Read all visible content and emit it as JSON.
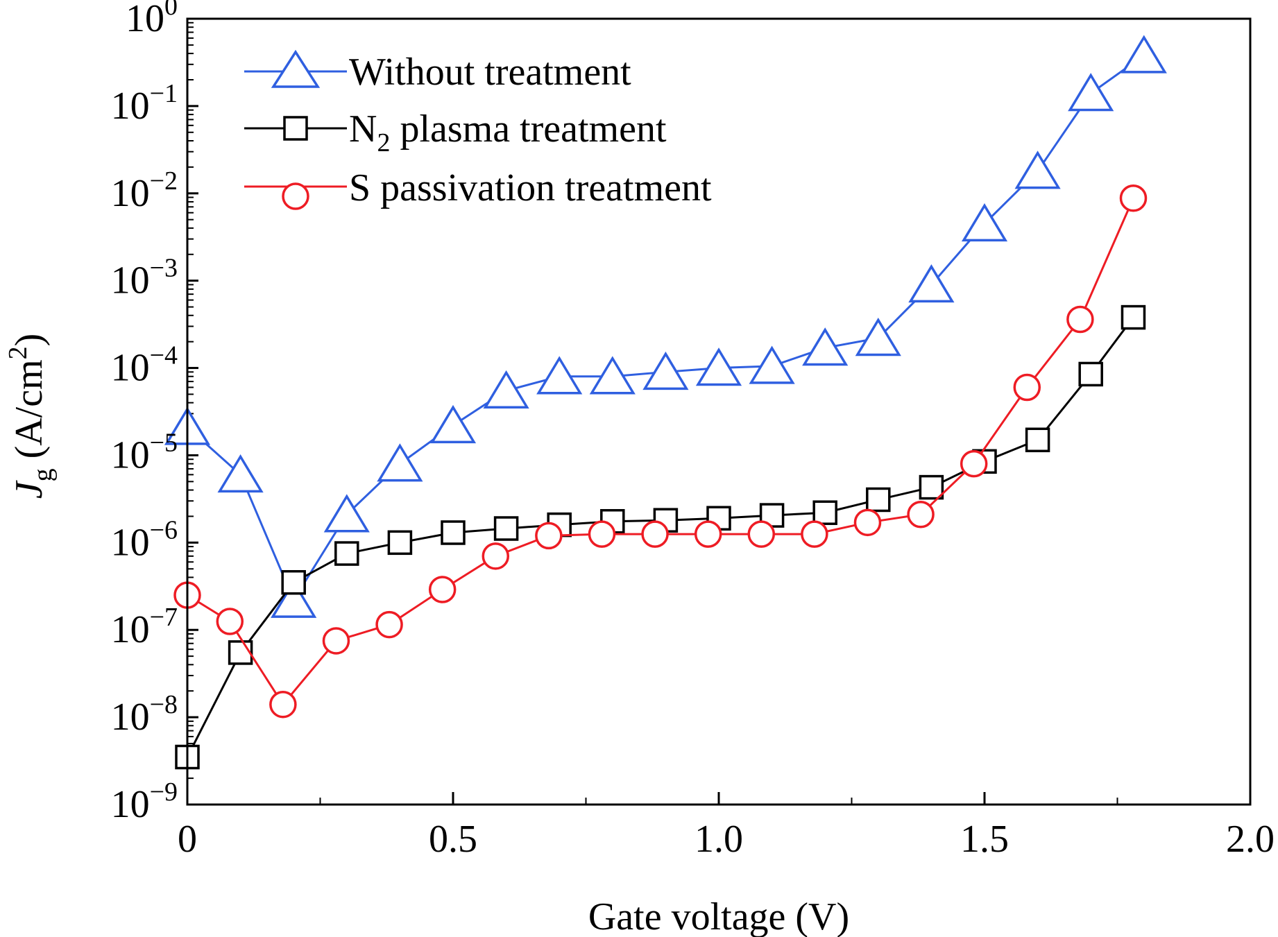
{
  "chart_data": {
    "type": "line",
    "title": "",
    "xlabel": "Gate voltage (V)",
    "ylabel": {
      "base": "J",
      "sub": "g",
      "unit_prefix": " (A/cm",
      "unit_sup": "2",
      "unit_suffix": ")"
    },
    "xlim": [
      0,
      2.0
    ],
    "ylim": [
      1e-09,
      1
    ],
    "yscale": "log",
    "xticks": [
      {
        "value": 0,
        "label": "0"
      },
      {
        "value": 0.5,
        "label": "0.5"
      },
      {
        "value": 1.0,
        "label": "1.0"
      },
      {
        "value": 1.5,
        "label": "1.5"
      },
      {
        "value": 2.0,
        "label": "2.0"
      }
    ],
    "yticks": [
      {
        "exp": 0,
        "base": "10",
        "sup": "0"
      },
      {
        "exp": -1,
        "base": "10",
        "sup": "−1"
      },
      {
        "exp": -2,
        "base": "10",
        "sup": "−2"
      },
      {
        "exp": -3,
        "base": "10",
        "sup": "−3"
      },
      {
        "exp": -4,
        "base": "10",
        "sup": "−4"
      },
      {
        "exp": -5,
        "base": "10",
        "sup": "−5"
      },
      {
        "exp": -6,
        "base": "10",
        "sup": "−6"
      },
      {
        "exp": -7,
        "base": "10",
        "sup": "−7"
      },
      {
        "exp": -8,
        "base": "10",
        "sup": "−8"
      },
      {
        "exp": -9,
        "base": "10",
        "sup": "−9"
      }
    ],
    "legend_position": "top-left",
    "series": [
      {
        "name": "Without treatment",
        "marker": "triangle",
        "color": "#2f5fe0",
        "x": [
          0,
          0.1,
          0.2,
          0.3,
          0.4,
          0.5,
          0.6,
          0.7,
          0.8,
          0.9,
          1.0,
          1.1,
          1.2,
          1.3,
          1.4,
          1.5,
          1.6,
          1.7,
          1.8
        ],
        "y": [
          2.1e-05,
          6e-06,
          2.2e-07,
          2.1e-06,
          8e-06,
          2.2e-05,
          5.5e-05,
          8e-05,
          8e-05,
          9e-05,
          0.0001,
          0.000105,
          0.00017,
          0.00022,
          0.0009,
          0.0045,
          0.018,
          0.14,
          0.38
        ]
      },
      {
        "name": "N2 plasma treatment",
        "legend_label": {
          "base": "N",
          "sub": "2",
          "rest": " plasma treatment"
        },
        "marker": "square",
        "color": "#000000",
        "x": [
          0,
          0.1,
          0.2,
          0.3,
          0.4,
          0.5,
          0.6,
          0.7,
          0.8,
          0.9,
          1.0,
          1.1,
          1.2,
          1.3,
          1.4,
          1.5,
          1.6,
          1.7,
          1.78
        ],
        "y": [
          3.5e-09,
          5.5e-08,
          3.5e-07,
          7.5e-07,
          1e-06,
          1.3e-06,
          1.45e-06,
          1.6e-06,
          1.75e-06,
          1.8e-06,
          1.9e-06,
          2.05e-06,
          2.2e-06,
          3.1e-06,
          4.3e-06,
          8.5e-06,
          1.5e-05,
          8.5e-05,
          0.00038
        ]
      },
      {
        "name": "S passivation treatment",
        "marker": "circle",
        "color": "#ee1c24",
        "x": [
          0,
          0.08,
          0.18,
          0.28,
          0.38,
          0.48,
          0.58,
          0.68,
          0.78,
          0.88,
          0.98,
          1.08,
          1.18,
          1.28,
          1.38,
          1.48,
          1.58,
          1.68,
          1.78
        ],
        "y": [
          2.5e-07,
          1.25e-07,
          1.4e-08,
          7.5e-08,
          1.15e-07,
          2.9e-07,
          7e-07,
          1.2e-06,
          1.25e-06,
          1.25e-06,
          1.25e-06,
          1.25e-06,
          1.25e-06,
          1.7e-06,
          2.1e-06,
          8e-06,
          6e-05,
          0.00036,
          0.0088
        ]
      }
    ]
  }
}
